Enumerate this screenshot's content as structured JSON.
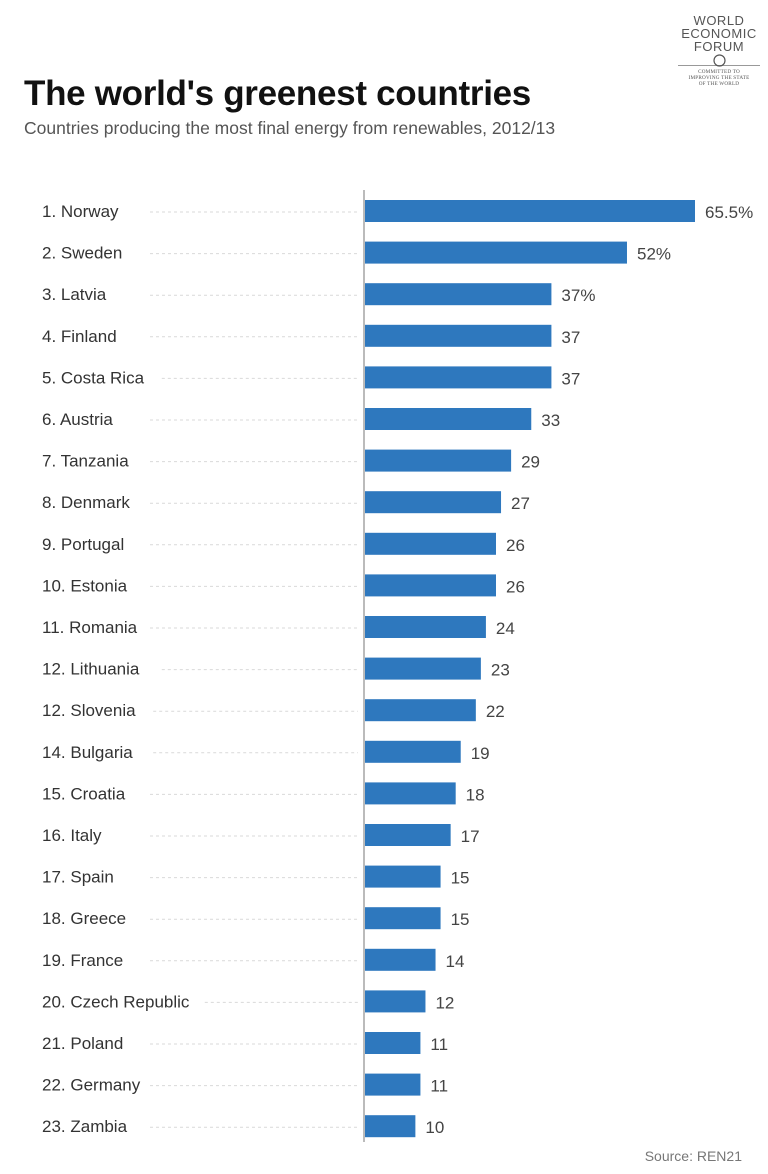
{
  "logo": {
    "lines": [
      "WORLD",
      "ECONOMIC",
      "FORUM"
    ],
    "tagline": [
      "COMMITTED TO",
      "IMPROVING THE STATE",
      "OF THE WORLD"
    ]
  },
  "chart_data": {
    "type": "bar",
    "orientation": "horizontal",
    "title": "The world's greenest countries",
    "subtitle": "Countries producing the most final energy from renewables, 2012/13",
    "source": "Source: REN21",
    "xlim": [
      0,
      65.5
    ],
    "unit": "%",
    "bar_color": "#2e78be",
    "categories": [
      "1. Norway",
      "2. Sweden",
      "3. Latvia",
      "4. Finland",
      "5. Costa Rica",
      "6. Austria",
      "7. Tanzania",
      "8. Denmark",
      "9. Portugal",
      "10. Estonia",
      "11. Romania",
      "12. Lithuania",
      "12. Slovenia",
      "14. Bulgaria",
      "15. Croatia",
      "16. Italy",
      "17. Spain",
      "18. Greece",
      "19. France",
      "20. Czech Republic",
      "21. Poland",
      "22. Germany",
      "23. Zambia"
    ],
    "values": [
      65.5,
      52,
      37,
      37,
      37,
      33,
      29,
      27,
      26,
      26,
      24,
      23,
      22,
      19,
      18,
      17,
      15,
      15,
      14,
      12,
      11,
      11,
      10
    ],
    "value_labels": [
      "65.5%",
      "52%",
      "37%",
      "37",
      "37",
      "33",
      "29",
      "27",
      "26",
      "26",
      "24",
      "23",
      "22",
      "19",
      "18",
      "17",
      "15",
      "15",
      "14",
      "12",
      "11",
      "11",
      "10"
    ]
  }
}
